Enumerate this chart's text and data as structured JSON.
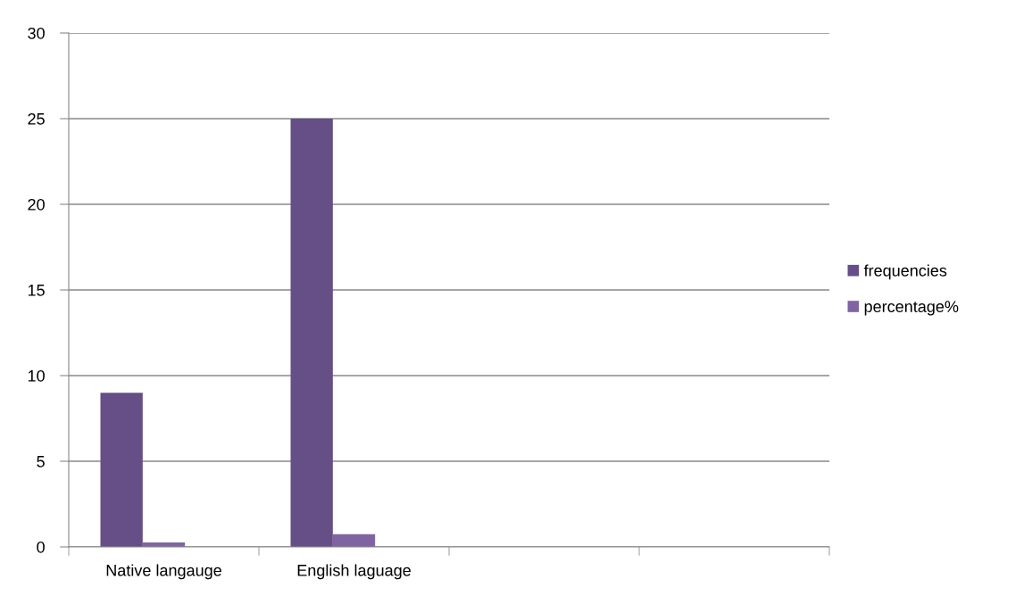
{
  "chart_data": {
    "type": "bar",
    "categories": [
      "Native langauge",
      "English laguage",
      null,
      null
    ],
    "series": [
      {
        "name": "frequencies",
        "color": "#664e86",
        "values": [
          9,
          25,
          null,
          null
        ]
      },
      {
        "name": "percentage%",
        "color": "#8064a2",
        "values": [
          0.26,
          0.74,
          null,
          null
        ]
      }
    ],
    "ylim": [
      0,
      30
    ],
    "yticks": [
      0,
      5,
      10,
      15,
      20,
      25,
      30
    ],
    "grid": "y",
    "legend": "right"
  }
}
